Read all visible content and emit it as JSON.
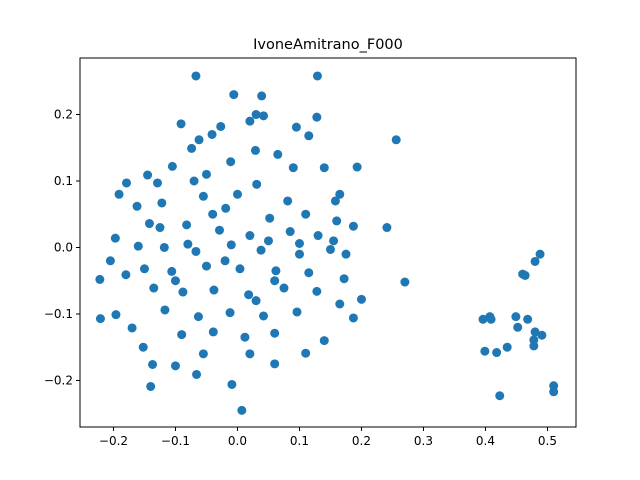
{
  "chart_data": {
    "type": "scatter",
    "title": "IvoneAmitrano_F000",
    "xlabel": "",
    "ylabel": "",
    "xlim": [
      -0.254,
      0.546
    ],
    "ylim": [
      -0.27,
      0.285
    ],
    "x_ticks": [
      -0.2,
      -0.1,
      0.0,
      0.1,
      0.2,
      0.3,
      0.4,
      0.5
    ],
    "x_tick_labels": [
      "−0.2",
      "−0.1",
      "0.0",
      "0.1",
      "0.2",
      "0.3",
      "0.4",
      "0.5"
    ],
    "y_ticks": [
      -0.2,
      -0.1,
      0.0,
      0.1,
      0.2
    ],
    "y_tick_labels": [
      "−0.2",
      "−0.1",
      "0.0",
      "0.1",
      "0.2"
    ],
    "grid": false,
    "legend": "none",
    "marker_color": "#1f77b4",
    "series": [
      {
        "points": [
          [
            -0.067,
            0.258
          ],
          [
            0.129,
            0.258
          ],
          [
            -0.006,
            0.23
          ],
          [
            0.039,
            0.228
          ],
          [
            -0.091,
            0.186
          ],
          [
            0.02,
            0.19
          ],
          [
            0.03,
            0.2
          ],
          [
            0.042,
            0.198
          ],
          [
            0.256,
            0.162
          ],
          [
            0.128,
            0.196
          ],
          [
            0.095,
            0.181
          ],
          [
            -0.062,
            0.162
          ],
          [
            -0.041,
            0.17
          ],
          [
            -0.027,
            0.182
          ],
          [
            -0.179,
            0.097
          ],
          [
            -0.191,
            0.08
          ],
          [
            -0.145,
            0.109
          ],
          [
            -0.129,
            0.097
          ],
          [
            -0.162,
            0.062
          ],
          [
            0.193,
            0.121
          ],
          [
            0.165,
            0.08
          ],
          [
            0.158,
            0.07
          ],
          [
            0.187,
            0.032
          ],
          [
            0.241,
            0.03
          ],
          [
            0.27,
            -0.052
          ],
          [
            -0.222,
            -0.048
          ],
          [
            -0.205,
            -0.02
          ],
          [
            -0.197,
            0.014
          ],
          [
            -0.18,
            -0.041
          ],
          [
            -0.221,
            -0.107
          ],
          [
            -0.196,
            -0.101
          ],
          [
            -0.17,
            -0.121
          ],
          [
            -0.152,
            -0.15
          ],
          [
            -0.137,
            -0.176
          ],
          [
            -0.14,
            -0.209
          ],
          [
            -0.1,
            -0.178
          ],
          [
            -0.066,
            -0.191
          ],
          [
            -0.009,
            -0.206
          ],
          [
            0.007,
            -0.245
          ],
          [
            0.06,
            -0.175
          ],
          [
            0.11,
            -0.159
          ],
          [
            0.14,
            -0.14
          ],
          [
            0.187,
            -0.106
          ],
          [
            0.2,
            -0.078
          ],
          [
            0.165,
            -0.085
          ],
          [
            0.172,
            -0.047
          ],
          [
            0.175,
            -0.01
          ],
          [
            0.155,
            0.01
          ],
          [
            0.16,
            0.04
          ],
          [
            -0.011,
            0.129
          ],
          [
            0.029,
            0.146
          ],
          [
            0.065,
            0.14
          ],
          [
            -0.105,
            0.122
          ],
          [
            -0.074,
            0.149
          ],
          [
            -0.05,
            0.11
          ],
          [
            0.09,
            0.12
          ],
          [
            0.115,
            0.168
          ],
          [
            0.14,
            0.12
          ],
          [
            -0.055,
            0.077
          ],
          [
            0.031,
            0.095
          ],
          [
            0.081,
            0.07
          ],
          [
            -0.122,
            0.067
          ],
          [
            -0.019,
            0.059
          ],
          [
            0.052,
            0.044
          ],
          [
            0.11,
            0.05
          ],
          [
            -0.142,
            0.036
          ],
          [
            -0.082,
            0.034
          ],
          [
            -0.029,
            0.026
          ],
          [
            0.02,
            0.018
          ],
          [
            0.085,
            0.024
          ],
          [
            0.13,
            0.018
          ],
          [
            -0.16,
            0.002
          ],
          [
            -0.118,
            0.0
          ],
          [
            -0.067,
            -0.006
          ],
          [
            -0.01,
            0.004
          ],
          [
            0.038,
            -0.004
          ],
          [
            0.1,
            0.006
          ],
          [
            0.15,
            -0.003
          ],
          [
            -0.15,
            -0.032
          ],
          [
            -0.106,
            -0.036
          ],
          [
            -0.05,
            -0.028
          ],
          [
            0.004,
            -0.032
          ],
          [
            0.062,
            -0.035
          ],
          [
            0.115,
            -0.038
          ],
          [
            -0.135,
            -0.061
          ],
          [
            -0.088,
            -0.067
          ],
          [
            -0.038,
            -0.064
          ],
          [
            0.018,
            -0.071
          ],
          [
            0.075,
            -0.061
          ],
          [
            0.128,
            -0.066
          ],
          [
            -0.117,
            -0.094
          ],
          [
            -0.063,
            -0.104
          ],
          [
            -0.012,
            -0.098
          ],
          [
            0.042,
            -0.103
          ],
          [
            0.096,
            -0.097
          ],
          [
            -0.09,
            -0.131
          ],
          [
            -0.039,
            -0.127
          ],
          [
            0.012,
            -0.135
          ],
          [
            0.06,
            -0.129
          ],
          [
            -0.055,
            -0.16
          ],
          [
            0.02,
            -0.16
          ],
          [
            -0.08,
            0.005
          ],
          [
            -0.04,
            0.05
          ],
          [
            0.0,
            0.08
          ],
          [
            0.05,
            0.01
          ],
          [
            -0.1,
            -0.05
          ],
          [
            0.06,
            -0.05
          ],
          [
            -0.07,
            0.1
          ],
          [
            0.03,
            -0.08
          ],
          [
            0.1,
            -0.01
          ],
          [
            -0.125,
            0.03
          ],
          [
            -0.02,
            -0.02
          ],
          [
            0.407,
            -0.104
          ],
          [
            0.396,
            -0.108
          ],
          [
            0.409,
            -0.108
          ],
          [
            0.399,
            -0.156
          ],
          [
            0.418,
            -0.158
          ],
          [
            0.435,
            -0.15
          ],
          [
            0.423,
            -0.223
          ],
          [
            0.449,
            -0.104
          ],
          [
            0.468,
            -0.108
          ],
          [
            0.452,
            -0.12
          ],
          [
            0.48,
            -0.127
          ],
          [
            0.491,
            -0.132
          ],
          [
            0.478,
            -0.139
          ],
          [
            0.478,
            -0.148
          ],
          [
            0.46,
            -0.04
          ],
          [
            0.464,
            -0.042
          ],
          [
            0.48,
            -0.021
          ],
          [
            0.488,
            -0.01
          ],
          [
            0.51,
            -0.208
          ],
          [
            0.51,
            -0.217
          ]
        ]
      }
    ]
  }
}
